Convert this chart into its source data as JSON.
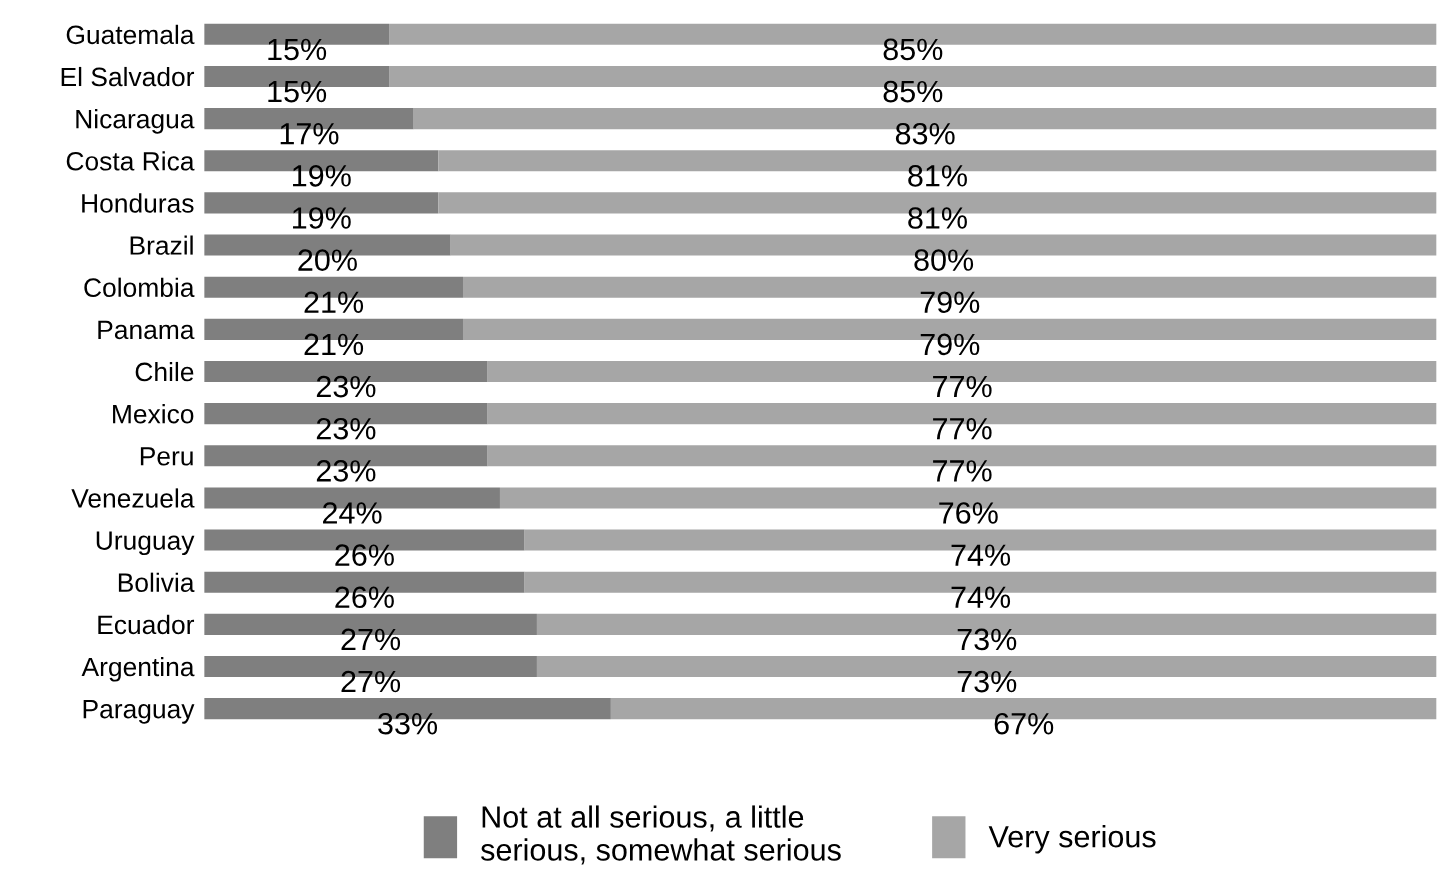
{
  "chart_data": {
    "type": "bar",
    "orientation": "horizontal",
    "stacked": true,
    "legend": "bottom",
    "grid": false,
    "categories": [
      "Guatemala",
      "El Salvador",
      "Nicaragua",
      "Costa Rica",
      "Honduras",
      "Brazil",
      "Colombia",
      "Panama",
      "Chile",
      "Mexico",
      "Peru",
      "Venezuela",
      "Uruguay",
      "Bolivia",
      "Ecuador",
      "Argentina",
      "Paraguay"
    ],
    "series": [
      {
        "name": "Not at all serious, a little\nserious, somewhat serious",
        "color": "#7f7f7f",
        "values": [
          15,
          15,
          17,
          19,
          19,
          20,
          21,
          21,
          23,
          23,
          23,
          24,
          26,
          26,
          27,
          27,
          33
        ],
        "value_labels": [
          "15%",
          "15%",
          "17%",
          "19%",
          "19%",
          "20%",
          "21%",
          "21%",
          "23%",
          "23%",
          "23%",
          "24%",
          "26%",
          "26%",
          "27%",
          "27%",
          "33%"
        ]
      },
      {
        "name": "Very serious",
        "color": "#a6a6a6",
        "values": [
          85,
          85,
          83,
          81,
          81,
          80,
          79,
          79,
          77,
          77,
          77,
          76,
          74,
          74,
          73,
          73,
          67
        ],
        "value_labels": [
          "85%",
          "85%",
          "83%",
          "81%",
          "81%",
          "80%",
          "79%",
          "79%",
          "77%",
          "77%",
          "77%",
          "76%",
          "74%",
          "74%",
          "73%",
          "73%",
          "67%"
        ]
      }
    ]
  }
}
